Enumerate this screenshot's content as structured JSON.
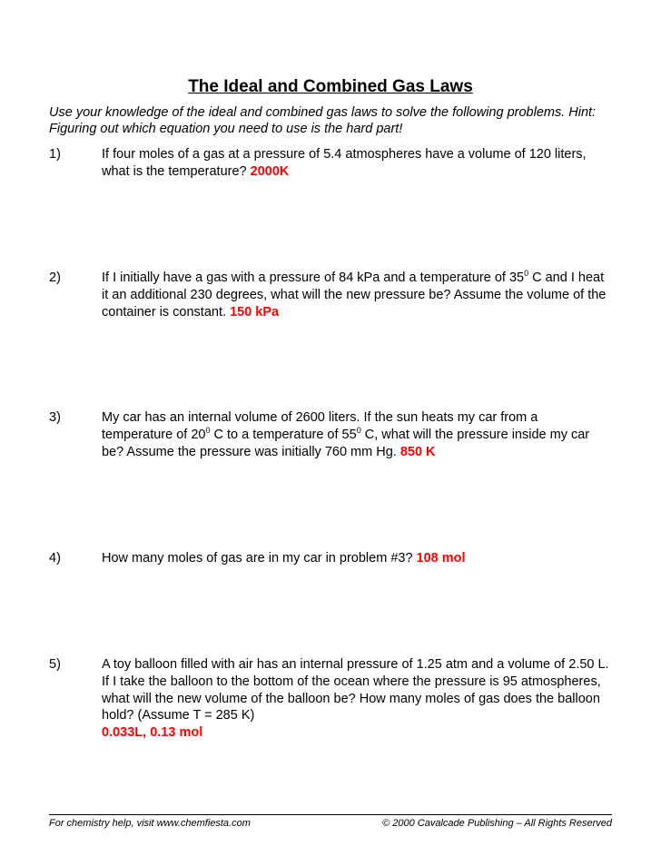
{
  "title": "The Ideal and Combined Gas Laws",
  "instructions": "Use your knowledge of the ideal and combined gas laws to solve the following problems.  Hint:  Figuring out which equation you need to use is the hard part!",
  "problems": [
    {
      "num": "1)",
      "text": "If four moles of a gas at a pressure of 5.4 atmospheres have a volume of 120 liters, what is the temperature?  ",
      "answer": "2000K"
    },
    {
      "num": "2)",
      "text_pre": "If I initially have a gas with a pressure of 84 kPa and a temperature of 35",
      "sup": "0",
      "text_post": " C and I heat it an additional 230 degrees, what will the new pressure be?  Assume the volume of the container is constant.  ",
      "answer": "150 kPa"
    },
    {
      "num": "3)",
      "text_pre": "My car has an internal volume of 2600 liters.  If the sun heats my car from a temperature of 20",
      "sup1": "0",
      "text_mid": " C to a temperature of 55",
      "sup2": "0",
      "text_post": " C, what will the pressure inside my car be?  Assume the pressure was initially 760 mm Hg.  ",
      "answer": "850 K"
    },
    {
      "num": "4)",
      "text": "How many moles of gas are in my car in problem #3? ",
      "answer": "108 mol"
    },
    {
      "num": "5)",
      "text": "A toy balloon filled with air has an internal pressure of 1.25 atm and a volume of 2.50 L.  If I take the balloon to the bottom of the ocean where the pressure is 95 atmospheres, what will the new volume of the balloon be?  How many moles of gas does the balloon hold?  (Assume T = 285 K) ",
      "answer": "0.033L, 0.13 mol"
    }
  ],
  "footer": {
    "left": "For chemistry help, visit www.chemfiesta.com",
    "right": "© 2000 Cavalcade Publishing – All Rights Reserved"
  }
}
